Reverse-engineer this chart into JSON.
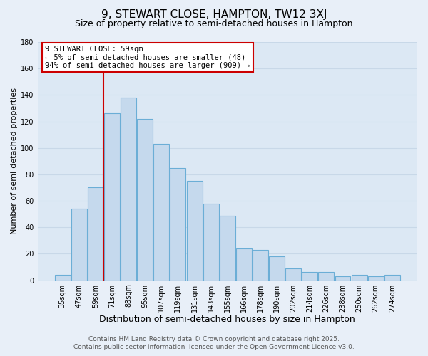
{
  "title": "9, STEWART CLOSE, HAMPTON, TW12 3XJ",
  "subtitle": "Size of property relative to semi-detached houses in Hampton",
  "xlabel": "Distribution of semi-detached houses by size in Hampton",
  "ylabel": "Number of semi-detached properties",
  "categories": [
    "35sqm",
    "47sqm",
    "59sqm",
    "71sqm",
    "83sqm",
    "95sqm",
    "107sqm",
    "119sqm",
    "131sqm",
    "143sqm",
    "155sqm",
    "166sqm",
    "178sqm",
    "190sqm",
    "202sqm",
    "214sqm",
    "226sqm",
    "238sqm",
    "250sqm",
    "262sqm",
    "274sqm"
  ],
  "values": [
    4,
    54,
    70,
    126,
    138,
    122,
    103,
    85,
    75,
    58,
    49,
    24,
    23,
    18,
    9,
    6,
    6,
    3,
    4,
    3,
    4
  ],
  "bar_color": "#c5d9ed",
  "bar_edge_color": "#6baed6",
  "highlight_index": 2,
  "highlight_line_color": "#cc0000",
  "ylim": [
    0,
    180
  ],
  "yticks": [
    0,
    20,
    40,
    60,
    80,
    100,
    120,
    140,
    160,
    180
  ],
  "annotation_title": "9 STEWART CLOSE: 59sqm",
  "annotation_line1": "← 5% of semi-detached houses are smaller (48)",
  "annotation_line2": "94% of semi-detached houses are larger (909) →",
  "annotation_box_color": "#ffffff",
  "annotation_box_edge": "#cc0000",
  "footer_line1": "Contains HM Land Registry data © Crown copyright and database right 2025.",
  "footer_line2": "Contains public sector information licensed under the Open Government Licence v3.0.",
  "background_color": "#e8eff8",
  "plot_bg_color": "#dce8f4",
  "grid_color": "#c8d8e8",
  "title_fontsize": 11,
  "subtitle_fontsize": 9,
  "xlabel_fontsize": 9,
  "ylabel_fontsize": 8,
  "tick_fontsize": 7,
  "footer_fontsize": 6.5
}
